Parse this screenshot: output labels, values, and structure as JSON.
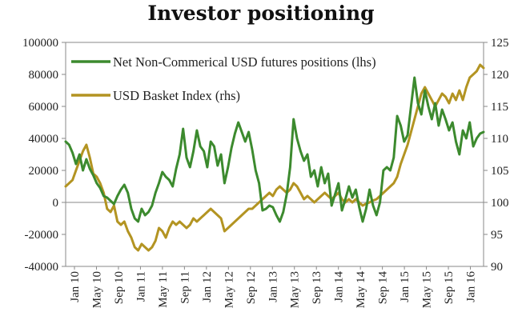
{
  "chart_data": {
    "type": "line",
    "title": "Investor positioning",
    "x_labels": [
      "Jan 10",
      "May 10",
      "Sep 10",
      "Jan 11",
      "May 11",
      "Sep 11",
      "Jan 12",
      "May 12",
      "Sep 12",
      "Jan 13",
      "May 13",
      "Sep 13",
      "Jan 14",
      "May 14",
      "Sep 14",
      "Jan 15",
      "May 15",
      "Sep 15",
      "Jan 16"
    ],
    "y_left": {
      "range": [
        -40000,
        100000
      ],
      "ticks": [
        -40000,
        -20000,
        0,
        20000,
        40000,
        60000,
        80000,
        100000
      ],
      "tick_labels": [
        "-40000",
        "-20000",
        "0",
        "20000",
        "40000",
        "60000",
        "80000",
        "100000"
      ]
    },
    "y_right": {
      "range": [
        90,
        125
      ],
      "ticks": [
        90,
        95,
        100,
        105,
        110,
        115,
        120,
        125
      ],
      "tick_labels": [
        "90",
        "95",
        "100",
        "105",
        "110",
        "115",
        "120",
        "125"
      ]
    },
    "series": [
      {
        "name": "Net Non-Commerical USD futures positions (lhs)",
        "axis": "left",
        "color": "#3c8a2e",
        "points": [
          [
            0,
            38000
          ],
          [
            0.5,
            36000
          ],
          [
            1,
            31000
          ],
          [
            1.5,
            24000
          ],
          [
            2,
            30000
          ],
          [
            2.5,
            20000
          ],
          [
            3,
            27000
          ],
          [
            3.5,
            21000
          ],
          [
            4,
            17000
          ],
          [
            4.5,
            12000
          ],
          [
            5,
            9000
          ],
          [
            5.5,
            4000
          ],
          [
            6,
            3000
          ],
          [
            6.5,
            1000
          ],
          [
            7,
            -1000
          ],
          [
            7.5,
            4000
          ],
          [
            8,
            8000
          ],
          [
            8.5,
            11000
          ],
          [
            9,
            6000
          ],
          [
            9.5,
            -4000
          ],
          [
            10,
            -10000
          ],
          [
            10.5,
            -12000
          ],
          [
            11,
            -4000
          ],
          [
            11.5,
            -8000
          ],
          [
            12,
            -6000
          ],
          [
            12.5,
            -2000
          ],
          [
            13,
            6000
          ],
          [
            13.5,
            12000
          ],
          [
            14,
            19000
          ],
          [
            14.5,
            16000
          ],
          [
            15,
            14000
          ],
          [
            15.5,
            10000
          ],
          [
            16,
            21000
          ],
          [
            16.5,
            30000
          ],
          [
            17,
            46000
          ],
          [
            17.5,
            28000
          ],
          [
            18,
            22000
          ],
          [
            18.5,
            32000
          ],
          [
            19,
            45000
          ],
          [
            19.5,
            35000
          ],
          [
            20,
            32000
          ],
          [
            20.5,
            22000
          ],
          [
            21,
            38000
          ],
          [
            21.5,
            35000
          ],
          [
            22,
            23000
          ],
          [
            22.5,
            30000
          ],
          [
            23,
            12000
          ],
          [
            23.5,
            22000
          ],
          [
            24,
            34000
          ],
          [
            24.5,
            43000
          ],
          [
            25,
            50000
          ],
          [
            25.5,
            44000
          ],
          [
            26,
            38000
          ],
          [
            26.5,
            44000
          ],
          [
            27,
            33000
          ],
          [
            27.5,
            20000
          ],
          [
            28,
            12000
          ],
          [
            28.5,
            -5000
          ],
          [
            29,
            -4000
          ],
          [
            29.5,
            -2000
          ],
          [
            30,
            -3000
          ],
          [
            30.5,
            -8000
          ],
          [
            31,
            -12000
          ],
          [
            31.5,
            -6000
          ],
          [
            32,
            5000
          ],
          [
            32.5,
            22000
          ],
          [
            33,
            52000
          ],
          [
            33.5,
            40000
          ],
          [
            34,
            32000
          ],
          [
            34.5,
            26000
          ],
          [
            35,
            30000
          ],
          [
            35.5,
            16000
          ],
          [
            36,
            20000
          ],
          [
            36.5,
            10000
          ],
          [
            37,
            22000
          ],
          [
            37.5,
            12000
          ],
          [
            38,
            18000
          ],
          [
            38.5,
            -2000
          ],
          [
            39,
            5000
          ],
          [
            39.5,
            12000
          ],
          [
            40,
            -5000
          ],
          [
            40.5,
            2000
          ],
          [
            41,
            10000
          ],
          [
            41.5,
            3000
          ],
          [
            42,
            8000
          ],
          [
            42.5,
            -3000
          ],
          [
            43,
            -12000
          ],
          [
            43.5,
            -4000
          ],
          [
            44,
            8000
          ],
          [
            44.5,
            -2000
          ],
          [
            45,
            -8000
          ],
          [
            45.5,
            0
          ],
          [
            46,
            20000
          ],
          [
            46.5,
            22000
          ],
          [
            47,
            20000
          ],
          [
            47.5,
            28000
          ],
          [
            48,
            54000
          ],
          [
            48.5,
            48000
          ],
          [
            49,
            38000
          ],
          [
            49.5,
            42000
          ],
          [
            50,
            60000
          ],
          [
            50.5,
            78000
          ],
          [
            51,
            62000
          ],
          [
            51.5,
            55000
          ],
          [
            52,
            70000
          ],
          [
            52.5,
            60000
          ],
          [
            53,
            52000
          ],
          [
            53.5,
            62000
          ],
          [
            54,
            48000
          ],
          [
            54.5,
            58000
          ],
          [
            55,
            52000
          ],
          [
            55.5,
            45000
          ],
          [
            56,
            50000
          ],
          [
            56.5,
            38000
          ],
          [
            57,
            30000
          ],
          [
            57.5,
            45000
          ],
          [
            58,
            40000
          ],
          [
            58.5,
            50000
          ],
          [
            59,
            35000
          ],
          [
            59.5,
            40000
          ],
          [
            60,
            43000
          ],
          [
            60.5,
            44000
          ]
        ]
      },
      {
        "name": "USD Basket Index (rhs)",
        "axis": "right",
        "color": "#b39422",
        "points": [
          [
            0,
            102.5
          ],
          [
            0.5,
            103
          ],
          [
            1,
            103.5
          ],
          [
            1.5,
            105
          ],
          [
            2,
            106.5
          ],
          [
            2.5,
            108
          ],
          [
            3,
            109
          ],
          [
            3.5,
            107
          ],
          [
            4,
            104.5
          ],
          [
            4.5,
            104
          ],
          [
            5,
            103
          ],
          [
            5.5,
            101.5
          ],
          [
            6,
            99
          ],
          [
            6.5,
            98.5
          ],
          [
            7,
            99.5
          ],
          [
            7.5,
            97
          ],
          [
            8,
            96.5
          ],
          [
            8.5,
            97
          ],
          [
            9,
            95.5
          ],
          [
            9.5,
            94.5
          ],
          [
            10,
            93
          ],
          [
            10.5,
            92.5
          ],
          [
            11,
            93.5
          ],
          [
            11.5,
            93
          ],
          [
            12,
            92.5
          ],
          [
            12.5,
            93
          ],
          [
            13,
            94
          ],
          [
            13.5,
            96
          ],
          [
            14,
            95.5
          ],
          [
            14.5,
            94.5
          ],
          [
            15,
            96
          ],
          [
            15.5,
            97
          ],
          [
            16,
            96.5
          ],
          [
            16.5,
            97
          ],
          [
            17,
            96.5
          ],
          [
            17.5,
            96
          ],
          [
            18,
            96.5
          ],
          [
            18.5,
            97.5
          ],
          [
            19,
            97
          ],
          [
            19.5,
            97.5
          ],
          [
            20,
            98
          ],
          [
            20.5,
            98.5
          ],
          [
            21,
            99
          ],
          [
            21.5,
            98.5
          ],
          [
            22,
            98
          ],
          [
            22.5,
            97.5
          ],
          [
            23,
            95.5
          ],
          [
            23.5,
            96
          ],
          [
            24,
            96.5
          ],
          [
            24.5,
            97
          ],
          [
            25,
            97.5
          ],
          [
            25.5,
            98
          ],
          [
            26,
            98.5
          ],
          [
            26.5,
            99
          ],
          [
            27,
            99
          ],
          [
            27.5,
            99.5
          ],
          [
            28,
            100
          ],
          [
            28.5,
            100.5
          ],
          [
            29,
            101
          ],
          [
            29.5,
            101.5
          ],
          [
            30,
            101
          ],
          [
            30.5,
            102
          ],
          [
            31,
            102.5
          ],
          [
            31.5,
            102
          ],
          [
            32,
            101.5
          ],
          [
            32.5,
            102
          ],
          [
            33,
            103
          ],
          [
            33.5,
            102.5
          ],
          [
            34,
            101.5
          ],
          [
            34.5,
            100.5
          ],
          [
            35,
            101
          ],
          [
            35.5,
            100.5
          ],
          [
            36,
            100
          ],
          [
            36.5,
            100.5
          ],
          [
            37,
            101
          ],
          [
            37.5,
            101.5
          ],
          [
            38,
            101
          ],
          [
            38.5,
            100.5
          ],
          [
            39,
            101
          ],
          [
            39.5,
            101.5
          ],
          [
            40,
            100.5
          ],
          [
            40.5,
            100
          ],
          [
            41,
            100.5
          ],
          [
            41.5,
            100
          ],
          [
            42,
            100.5
          ],
          [
            42.5,
            100
          ],
          [
            43,
            99.5
          ],
          [
            43.5,
            99.8
          ],
          [
            44,
            100
          ],
          [
            44.5,
            100.3
          ],
          [
            45,
            100.5
          ],
          [
            45.5,
            101
          ],
          [
            46,
            101.5
          ],
          [
            46.5,
            102
          ],
          [
            47,
            102.5
          ],
          [
            47.5,
            103
          ],
          [
            48,
            104
          ],
          [
            48.5,
            106
          ],
          [
            49,
            107.5
          ],
          [
            49.5,
            109
          ],
          [
            50,
            111
          ],
          [
            50.5,
            113
          ],
          [
            51,
            115
          ],
          [
            51.5,
            117
          ],
          [
            52,
            118
          ],
          [
            52.5,
            117
          ],
          [
            53,
            116
          ],
          [
            53.5,
            115
          ],
          [
            54,
            116
          ],
          [
            54.5,
            117
          ],
          [
            55,
            116.5
          ],
          [
            55.5,
            115.5
          ],
          [
            56,
            117
          ],
          [
            56.5,
            116
          ],
          [
            57,
            117.5
          ],
          [
            57.5,
            116
          ],
          [
            58,
            118
          ],
          [
            58.5,
            119.5
          ],
          [
            59,
            120
          ],
          [
            59.5,
            120.5
          ],
          [
            60,
            121.5
          ],
          [
            60.5,
            121
          ]
        ]
      }
    ]
  }
}
